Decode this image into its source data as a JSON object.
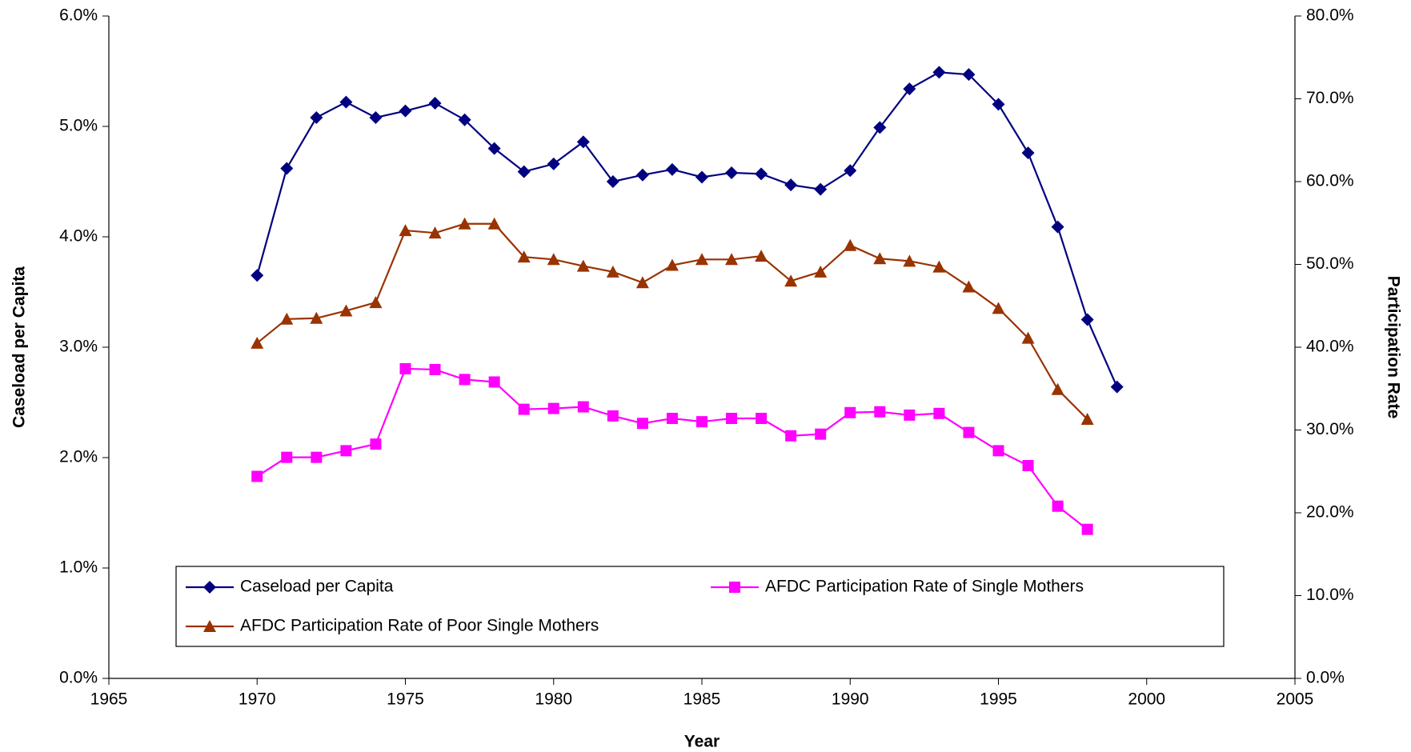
{
  "chart_data": {
    "type": "line",
    "xlabel": "Year",
    "ylabel": "Caseload per Capita",
    "y2label": "Participation Rate",
    "x": [
      1970,
      1971,
      1972,
      1973,
      1974,
      1975,
      1976,
      1977,
      1978,
      1979,
      1980,
      1981,
      1982,
      1983,
      1984,
      1985,
      1986,
      1987,
      1988,
      1989,
      1990,
      1991,
      1992,
      1993,
      1994,
      1995,
      1996,
      1997,
      1998,
      1999
    ],
    "xlim": [
      1965,
      2005
    ],
    "xticks": [
      1965,
      1970,
      1975,
      1980,
      1985,
      1990,
      1995,
      2000,
      2005
    ],
    "ylim": [
      0,
      6
    ],
    "yticks": [
      {
        "value": 0,
        "label": "0.0%"
      },
      {
        "value": 1,
        "label": "1.0%"
      },
      {
        "value": 2,
        "label": "2.0%"
      },
      {
        "value": 3,
        "label": "3.0%"
      },
      {
        "value": 4,
        "label": "4.0%"
      },
      {
        "value": 5,
        "label": "5.0%"
      },
      {
        "value": 6,
        "label": "6.0%"
      }
    ],
    "y2lim": [
      0,
      80
    ],
    "y2ticks": [
      {
        "value": 0,
        "label": "0.0%"
      },
      {
        "value": 10,
        "label": "10.0%"
      },
      {
        "value": 20,
        "label": "20.0%"
      },
      {
        "value": 30,
        "label": "30.0%"
      },
      {
        "value": 40,
        "label": "40.0%"
      },
      {
        "value": 50,
        "label": "50.0%"
      },
      {
        "value": 60,
        "label": "60.0%"
      },
      {
        "value": 70,
        "label": "70.0%"
      },
      {
        "value": 80,
        "label": "80.0%"
      }
    ],
    "grid": false,
    "series": [
      {
        "name": "Caseload per Capita",
        "color": "#000080",
        "marker": "diamond",
        "values": [
          3.65,
          4.62,
          5.08,
          5.22,
          5.08,
          5.14,
          5.21,
          5.06,
          4.8,
          4.59,
          4.66,
          4.86,
          4.5,
          4.56,
          4.61,
          4.54,
          4.58,
          4.57,
          4.47,
          4.43,
          4.6,
          4.99,
          5.34,
          5.49,
          5.47,
          5.2,
          4.76,
          4.09,
          3.25,
          2.64
        ]
      },
      {
        "name": "AFDC Participation Rate of Single Mothers",
        "color": "#ff00ff",
        "marker": "square",
        "axis": "y2",
        "values": [
          24.4,
          26.7,
          26.7,
          27.5,
          28.3,
          37.4,
          37.3,
          36.1,
          35.8,
          32.5,
          32.6,
          32.8,
          31.7,
          30.8,
          31.4,
          31.0,
          31.4,
          31.4,
          29.3,
          29.5,
          32.1,
          32.2,
          31.8,
          32.0,
          29.7,
          27.5,
          25.7,
          20.8,
          18.0,
          null
        ]
      },
      {
        "name": "AFDC Participation Rate of Poor Single Mothers",
        "color": "#993300",
        "marker": "triangle",
        "axis": "y2",
        "values": [
          40.5,
          43.4,
          43.5,
          44.4,
          45.4,
          54.1,
          53.8,
          54.9,
          54.9,
          50.9,
          50.6,
          49.8,
          49.1,
          47.8,
          49.9,
          50.6,
          50.6,
          51.0,
          48.0,
          49.1,
          52.3,
          50.7,
          50.4,
          49.7,
          47.3,
          44.7,
          41.1,
          34.9,
          31.3,
          null
        ]
      }
    ]
  }
}
